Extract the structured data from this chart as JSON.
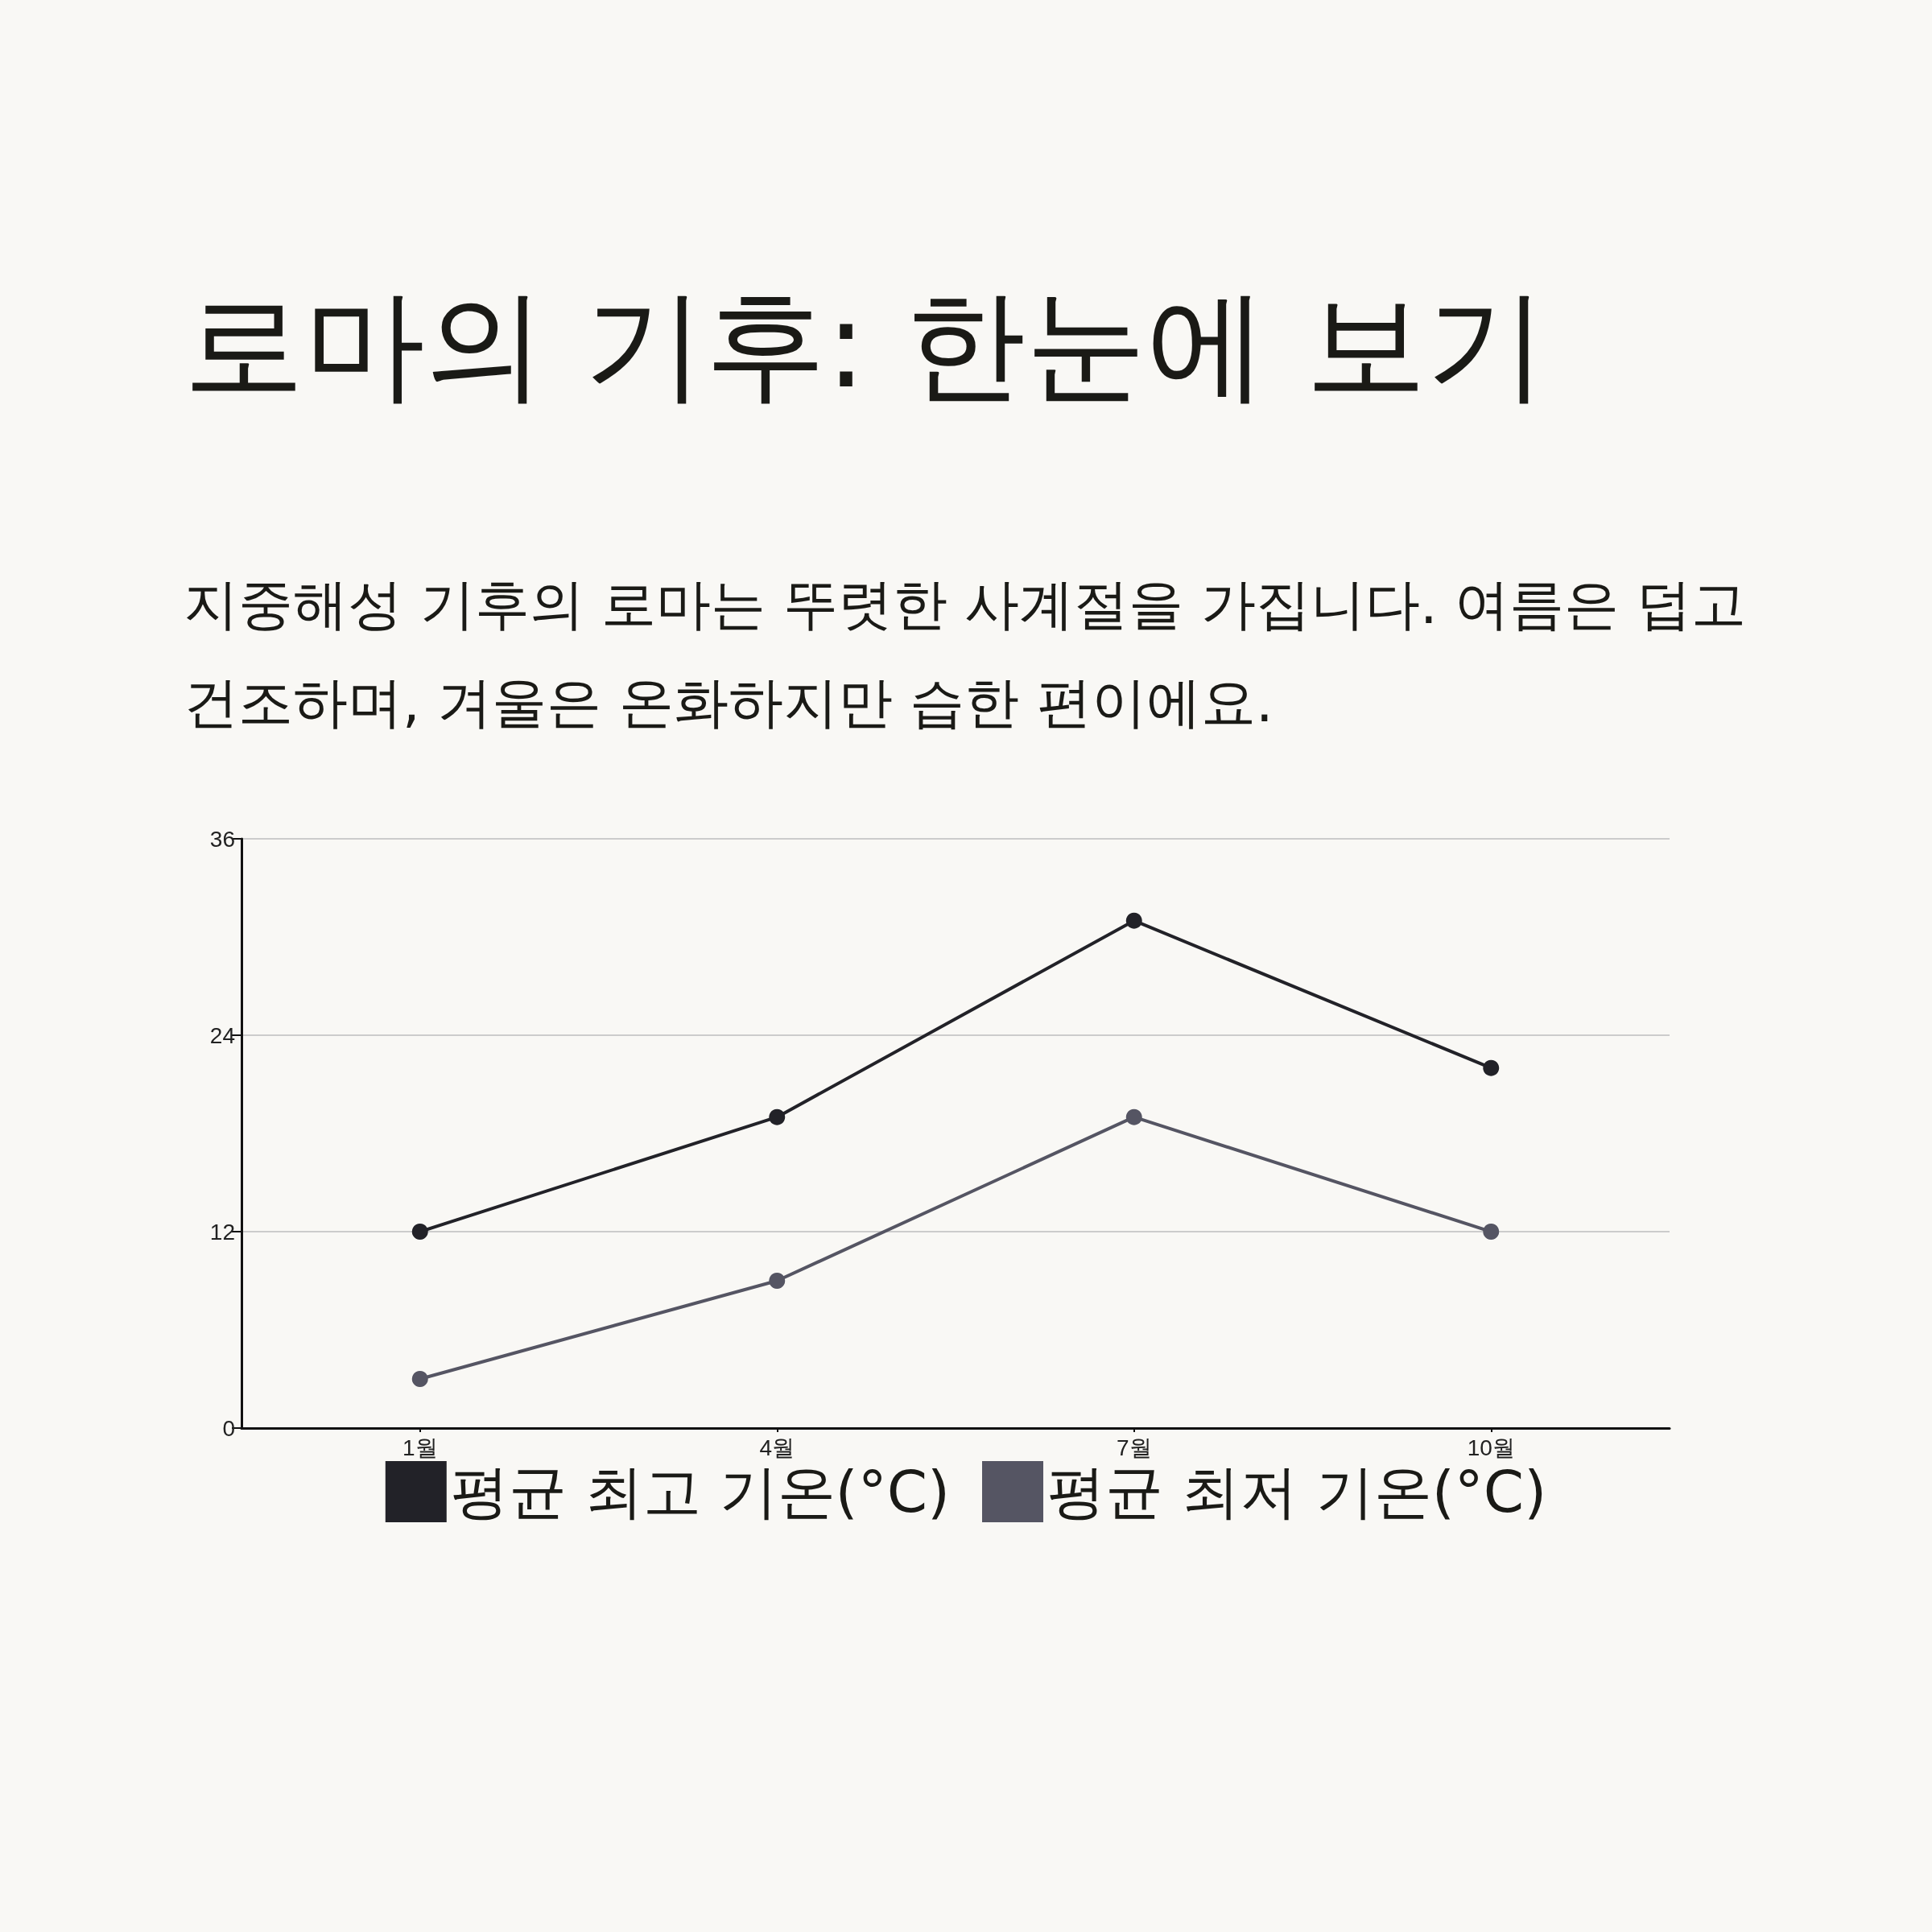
{
  "chart_data": {
    "type": "line",
    "title": "로마의 기후: 한눈에 보기",
    "subtitle": "지중해성 기후의 로마는 뚜렷한 사계절을 가집니다. 여름은 덥고 건조하며, 겨울은 온화하지만 습한 편이에요.",
    "categories": [
      "1월",
      "4월",
      "7월",
      "10월"
    ],
    "series": [
      {
        "name": "평균 최고 기온(°C)",
        "color": "#222228",
        "values": [
          12,
          19,
          31,
          22
        ]
      },
      {
        "name": "평균 최저 기온(°C)",
        "color": "#555563",
        "values": [
          3,
          9,
          19,
          12
        ]
      }
    ],
    "ylim": [
      0,
      36
    ],
    "yticks": [
      0,
      12,
      24,
      36
    ],
    "grid": "y",
    "legend": "bottom",
    "marker": "circle",
    "line_style": "solid"
  }
}
